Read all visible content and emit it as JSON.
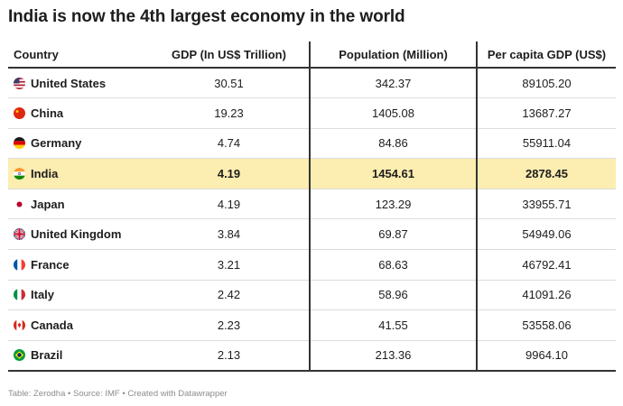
{
  "title": "India is now the 4th largest economy in the world",
  "chart_data": {
    "type": "table",
    "title": "India is now the 4th largest economy in the world",
    "columns": [
      "Country",
      "GDP (In US$ Trillion)",
      "Population (Million)",
      "Per capita GDP (US$)"
    ],
    "rows": [
      {
        "country": "United States",
        "flag": "us-flag-icon",
        "gdp": "30.51",
        "population": "342.37",
        "per_capita": "89105.20",
        "highlight": false
      },
      {
        "country": "China",
        "flag": "cn-flag-icon",
        "gdp": "19.23",
        "population": "1405.08",
        "per_capita": "13687.27",
        "highlight": false
      },
      {
        "country": "Germany",
        "flag": "de-flag-icon",
        "gdp": "4.74",
        "population": "84.86",
        "per_capita": "55911.04",
        "highlight": false
      },
      {
        "country": "India",
        "flag": "in-flag-icon",
        "gdp": "4.19",
        "population": "1454.61",
        "per_capita": "2878.45",
        "highlight": true
      },
      {
        "country": "Japan",
        "flag": "jp-flag-icon",
        "gdp": "4.19",
        "population": "123.29",
        "per_capita": "33955.71",
        "highlight": false
      },
      {
        "country": "United Kingdom",
        "flag": "gb-flag-icon",
        "gdp": "3.84",
        "population": "69.87",
        "per_capita": "54949.06",
        "highlight": false
      },
      {
        "country": "France",
        "flag": "fr-flag-icon",
        "gdp": "3.21",
        "population": "68.63",
        "per_capita": "46792.41",
        "highlight": false
      },
      {
        "country": "Italy",
        "flag": "it-flag-icon",
        "gdp": "2.42",
        "population": "58.96",
        "per_capita": "41091.26",
        "highlight": false
      },
      {
        "country": "Canada",
        "flag": "ca-flag-icon",
        "gdp": "2.23",
        "population": "41.55",
        "per_capita": "53558.06",
        "highlight": false
      },
      {
        "country": "Brazil",
        "flag": "br-flag-icon",
        "gdp": "2.13",
        "population": "213.36",
        "per_capita": "9964.10",
        "highlight": false
      }
    ],
    "highlight_color": "#fcedb0"
  },
  "footer": "Table: Zerodha • Source: IMF • Created with Datawrapper"
}
